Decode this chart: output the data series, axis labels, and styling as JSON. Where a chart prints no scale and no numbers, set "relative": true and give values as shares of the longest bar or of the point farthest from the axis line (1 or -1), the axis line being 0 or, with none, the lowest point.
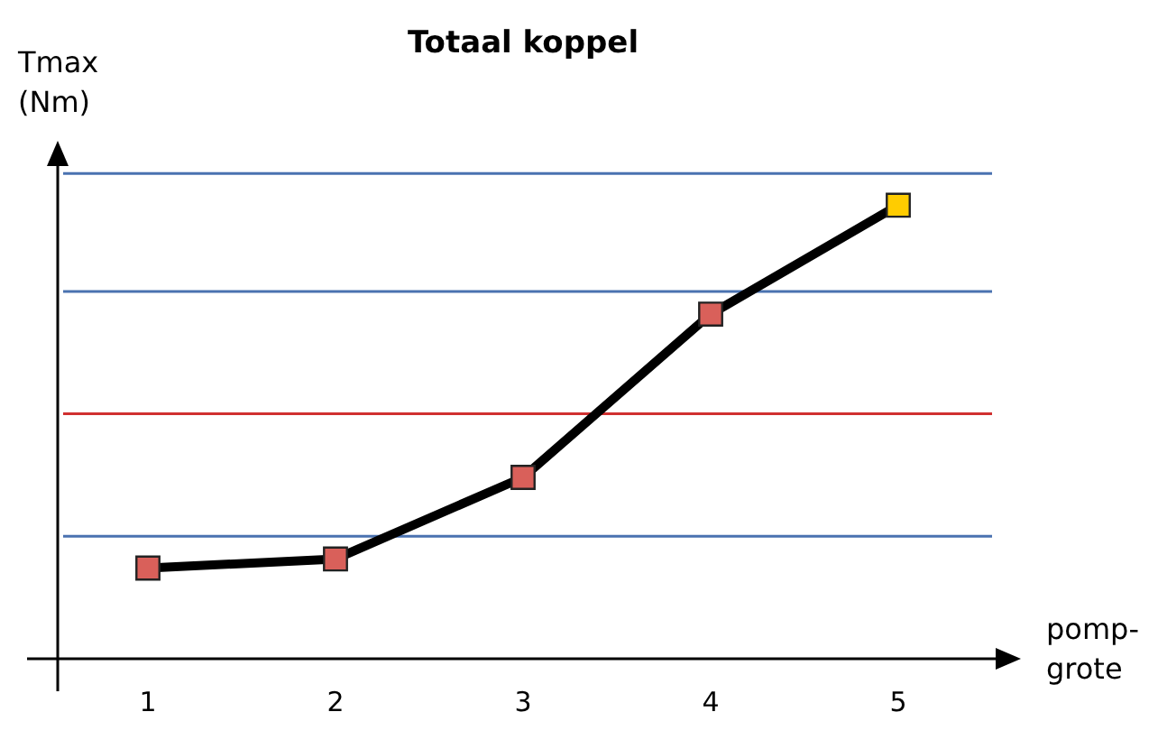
{
  "chart_data": {
    "type": "line",
    "title": "Totaal koppel",
    "xlabel": "pomp-\ngrote",
    "ylabel": "Tmax\n(Nm)",
    "relative": true,
    "categories": [
      "1",
      "2",
      "3",
      "4",
      "5"
    ],
    "series": [
      {
        "color": "#000000",
        "colors": [
          "#d9605a",
          "#d9605a",
          "#d9605a",
          "#d9605a",
          "#ffcc00"
        ],
        "values": [
          0.2,
          0.22,
          0.4,
          0.76,
          1
        ]
      }
    ],
    "ref_lines": [
      {
        "axis": "y",
        "value": 0.27,
        "color": "#4a72b0"
      },
      {
        "axis": "y",
        "value": 0.54,
        "color": "#d03030"
      },
      {
        "axis": "y",
        "value": 0.81,
        "color": "#4a72b0"
      },
      {
        "axis": "y",
        "value": 1.07,
        "color": "#4a72b0"
      }
    ],
    "marker": "square",
    "line_style": "solid",
    "grid": false,
    "legend": false
  }
}
